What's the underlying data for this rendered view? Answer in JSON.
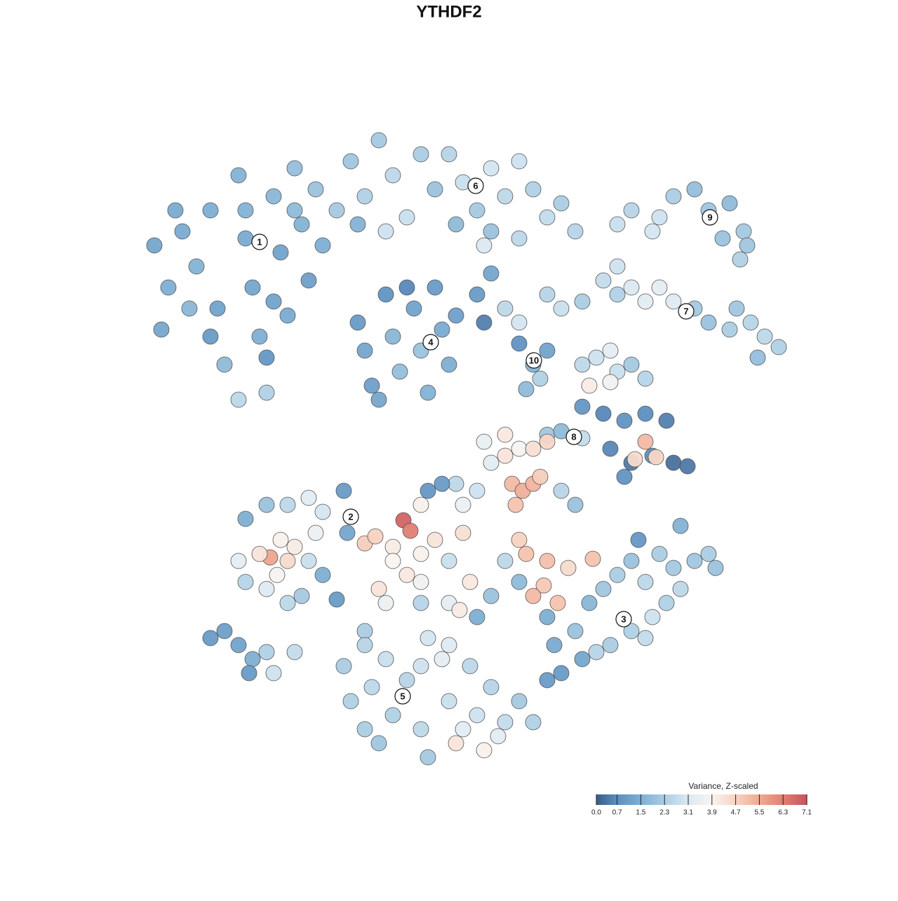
{
  "chart_data": {
    "type": "scatter",
    "title": "YTHDF2",
    "x": [
      -42,
      -40,
      -38,
      -36,
      -34,
      -33,
      -32,
      -30,
      -29,
      -28,
      -27,
      -26,
      -25,
      -24,
      -23,
      -22,
      -21,
      -20,
      -19,
      -18,
      -30,
      -34,
      -37,
      -41,
      -26,
      -22,
      -29,
      -25,
      -16,
      -39,
      -14,
      -12,
      -10,
      -8,
      -6,
      -4,
      -2,
      -13,
      -9,
      0,
      2,
      4,
      6,
      8,
      10,
      12,
      14,
      16,
      18,
      6,
      1,
      10,
      5,
      24,
      26,
      30,
      32,
      35,
      37,
      40,
      42,
      39,
      41.5,
      29,
      42.5,
      14,
      16,
      19,
      22,
      24,
      26,
      28,
      30,
      32,
      35,
      37,
      40,
      43,
      45,
      47,
      44,
      41,
      24,
      10,
      8,
      -13,
      -12,
      -11,
      -9,
      -8,
      -7,
      -5,
      -4,
      -3,
      -2,
      -1,
      0,
      1,
      -6,
      -10,
      5,
      6,
      4,
      10,
      12,
      13,
      11,
      14,
      19,
      21,
      23,
      24,
      20,
      23,
      26,
      28,
      19,
      22,
      25,
      28,
      31,
      23,
      26,
      29,
      32,
      34,
      25,
      28,
      29.5,
      26.5,
      14,
      16,
      19,
      5,
      8,
      10,
      6,
      8,
      12,
      14,
      9,
      10.5,
      12,
      9.5,
      13,
      16,
      18,
      1,
      4,
      -1,
      -3,
      -4,
      2,
      -29,
      -26,
      -23,
      -20,
      -18,
      -19,
      -15,
      -14.5,
      -24,
      -22,
      -25.5,
      -23,
      -27,
      -24.5,
      -29,
      -26,
      -30,
      -21,
      -18,
      -16,
      -23,
      -20,
      -12,
      -10.5,
      -6.5,
      -5.5,
      -8,
      -8,
      -6,
      -4,
      -2,
      0,
      2,
      3,
      -10,
      -9,
      -12,
      -4,
      0,
      4,
      6,
      -4,
      1.5,
      10,
      11,
      14,
      13.5,
      12,
      15.5,
      20.5,
      17,
      8,
      10,
      14,
      15,
      16,
      18,
      20,
      22,
      24,
      26,
      28,
      30,
      32,
      35,
      37,
      38,
      26,
      28,
      29,
      31,
      33,
      23,
      21,
      19,
      14,
      33,
      27,
      -15,
      -14,
      -12,
      -11,
      -9,
      -8,
      -6,
      -4,
      -4,
      -3,
      -1,
      0,
      1,
      2,
      4,
      5,
      6,
      7,
      8,
      10,
      12,
      -3,
      -10,
      -12,
      3,
      0,
      -34,
      -32,
      -30,
      -28,
      -26,
      -28.5,
      -25,
      -22
    ],
    "y": [
      29,
      23,
      31,
      26,
      34,
      20,
      12,
      39,
      30,
      23,
      16,
      8,
      36,
      28,
      19,
      40,
      32,
      24,
      37,
      29,
      7,
      16,
      20,
      17,
      13,
      34,
      34,
      21,
      34,
      34,
      41,
      36,
      44,
      39,
      33,
      42,
      37,
      32,
      31,
      42,
      38,
      34,
      40,
      36,
      41,
      37,
      33,
      35,
      31,
      31,
      32,
      30,
      29,
      32,
      34,
      33,
      36,
      37,
      34,
      35,
      31,
      30,
      27,
      31,
      29,
      22,
      20,
      21,
      24,
      22,
      23,
      21,
      23,
      21,
      20,
      18,
      17,
      18,
      16,
      14.5,
      13,
      20,
      26,
      18,
      20,
      18,
      14,
      9,
      22,
      16,
      11,
      20,
      14,
      8,
      23,
      17,
      12,
      19,
      23,
      7,
      18,
      25,
      22,
      15,
      12,
      10,
      8.5,
      14,
      12,
      13,
      14,
      11,
      9,
      9.5,
      12,
      10,
      6,
      5,
      4,
      5,
      4,
      0,
      -2,
      -1,
      -2,
      -2.5,
      -4,
      1,
      -1.2,
      -1.5,
      2,
      2.5,
      1.5,
      1,
      2,
      0,
      -2,
      -1,
      0,
      1,
      -5,
      -6,
      -5,
      -8,
      -4,
      -6,
      -8,
      -5,
      -6,
      -5,
      -6,
      -8,
      -8,
      -10,
      -8,
      -8,
      -7,
      -9,
      -12,
      -6,
      -12,
      -13,
      -14,
      -15.5,
      -16,
      -15,
      -18,
      -19,
      -20,
      -16,
      -21,
      -18,
      -21.5,
      -22,
      -16,
      -13.5,
      -12.5,
      -10.2,
      -11.7,
      -14,
      -16,
      -18,
      -15,
      -13,
      -16,
      -12,
      -19,
      -20,
      -22,
      -26,
      -22,
      -22,
      -24,
      -21,
      -19,
      -23,
      -13,
      -15,
      -16,
      -19.5,
      -21,
      -22,
      -15.7,
      -17,
      -16,
      -19,
      -24,
      -28,
      -32,
      -26,
      -22,
      -20,
      -18,
      -16,
      -19,
      -15,
      -17,
      -16,
      -15,
      -17,
      -26,
      -27,
      -24,
      -22,
      -20,
      -28,
      -29,
      -30,
      -33,
      -11,
      -13,
      -31,
      -36,
      -28,
      -34,
      -30,
      -38,
      -33,
      -31,
      -40,
      -27,
      -30,
      -36,
      -42,
      -40,
      -38,
      -43,
      -34,
      -41,
      -39,
      -36,
      -39,
      -44,
      -42,
      -40,
      -31,
      -28,
      -27,
      -26,
      -28,
      -30,
      -29,
      -32,
      -32,
      -29
    ],
    "values": [
      1.3,
      1.5,
      1.4,
      1.6,
      1.5,
      1.2,
      1.8,
      1.6,
      1.4,
      1.3,
      1.5,
      2.4,
      1.7,
      1.2,
      1.4,
      1.9,
      1.6,
      1.1,
      2.0,
      1.5,
      2.6,
      1.0,
      1.7,
      1.3,
      0.9,
      1.8,
      1.6,
      1.2,
      2.2,
      1.4,
      2.1,
      2.4,
      2.2,
      2.6,
      2.8,
      2.3,
      2.0,
      1.6,
      2.9,
      2.5,
      2.8,
      2.2,
      3.0,
      2.6,
      2.9,
      2.4,
      2.7,
      2.3,
      2.5,
      2.0,
      1.8,
      2.6,
      3.1,
      2.8,
      2.5,
      2.9,
      2.3,
      1.9,
      2.1,
      1.8,
      2.2,
      2.0,
      2.4,
      3.0,
      2.1,
      2.5,
      2.8,
      2.3,
      2.7,
      2.4,
      3.1,
      3.3,
      3.4,
      3.2,
      2.2,
      2.0,
      2.3,
      2.5,
      2.6,
      2.4,
      1.9,
      2.1,
      2.9,
      3.0,
      2.6,
      1.0,
      1.3,
      1.1,
      0.8,
      1.7,
      1.9,
      1.2,
      2.0,
      1.6,
      1.0,
      1.4,
      1.5,
      1.1,
      0.6,
      1.3,
      0.5,
      1.3,
      1.0,
      0.8,
      1.6,
      2.4,
      1.8,
      1.2,
      2.6,
      2.9,
      3.4,
      2.8,
      4.1,
      3.7,
      2.2,
      2.5,
      0.9,
      0.6,
      0.8,
      0.7,
      0.5,
      0.6,
      0.4,
      0.7,
      0.3,
      0.4,
      0.8,
      5.2,
      4.6,
      4.5,
      2.1,
      1.8,
      2.7,
      3.5,
      4.2,
      3.8,
      3.3,
      4.3,
      4.4,
      4.6,
      5.2,
      5.4,
      5.3,
      5.0,
      4.8,
      2.5,
      2.0,
      2.6,
      2.9,
      1.0,
      0.9,
      4.0,
      3.6,
      1.5,
      2.0,
      2.6,
      3.3,
      3.0,
      3.6,
      1.0,
      1.3,
      4.0,
      4.1,
      5.6,
      4.5,
      4.3,
      3.8,
      2.5,
      3.2,
      3.4,
      2.2,
      1.5,
      1.0,
      2.6,
      2.8,
      4.8,
      4.7,
      6.8,
      6.3,
      4.1,
      3.9,
      4.2,
      4.0,
      4.3,
      2.8,
      4.4,
      4.2,
      4.3,
      3.6,
      2.3,
      2.5,
      3.4,
      1.5,
      2.0,
      3.7,
      4.1,
      4.7,
      5.0,
      5.1,
      4.9,
      5.2,
      5.0,
      5.0,
      4.5,
      2.6,
      1.8,
      1.5,
      1.4,
      1.0,
      2.0,
      1.7,
      2.1,
      2.3,
      2.0,
      2.6,
      2.3,
      2.2,
      2.1,
      2.3,
      2.0,
      2.4,
      2.7,
      2.9,
      2.4,
      2.6,
      2.3,
      2.5,
      1.3,
      1.0,
      1.6,
      0.9,
      2.3,
      2.4,
      2.5,
      2.6,
      2.8,
      2.4,
      2.5,
      2.9,
      2.6,
      3.0,
      3.4,
      2.8,
      4.3,
      3.3,
      2.9,
      4.0,
      2.5,
      3.3,
      2.7,
      2.2,
      2.4,
      2.2,
      2.1,
      2.3,
      2.6,
      3.2,
      1.0,
      1.1,
      1.2,
      1.5,
      2.4,
      1.0,
      2.9,
      2.7
    ],
    "cluster_labels": [
      {
        "label": "1",
        "x": -27,
        "y": 29.5
      },
      {
        "label": "2",
        "x": -14,
        "y": -9.7
      },
      {
        "label": "3",
        "x": 24.9,
        "y": -24.3
      },
      {
        "label": "4",
        "x": -2.6,
        "y": 15.2
      },
      {
        "label": "5",
        "x": -6.6,
        "y": -35.3
      },
      {
        "label": "6",
        "x": 3.8,
        "y": 37.5
      },
      {
        "label": "7",
        "x": 33.8,
        "y": 19.6
      },
      {
        "label": "8",
        "x": 17.8,
        "y": 1.7
      },
      {
        "label": "9",
        "x": 37.2,
        "y": 33
      },
      {
        "label": "10",
        "x": 12.1,
        "y": 12.6
      }
    ],
    "colorbar": {
      "title": "Variance, Z-scaled",
      "clim": [
        0,
        7.1
      ],
      "ticks": [
        {
          "value": 0,
          "label": "0.0"
        },
        0.7,
        1.5,
        2.3,
        3.1,
        3.9,
        4.7,
        5.5,
        6.3,
        7.1
      ],
      "colors": [
        "#3b5b87",
        "#5d8fc0",
        "#7eafd3",
        "#abcde3",
        "#dbe9f3",
        "#f8f4f1",
        "#f7d3c1",
        "#efaa92",
        "#e07f74",
        "#c9525c"
      ]
    }
  }
}
